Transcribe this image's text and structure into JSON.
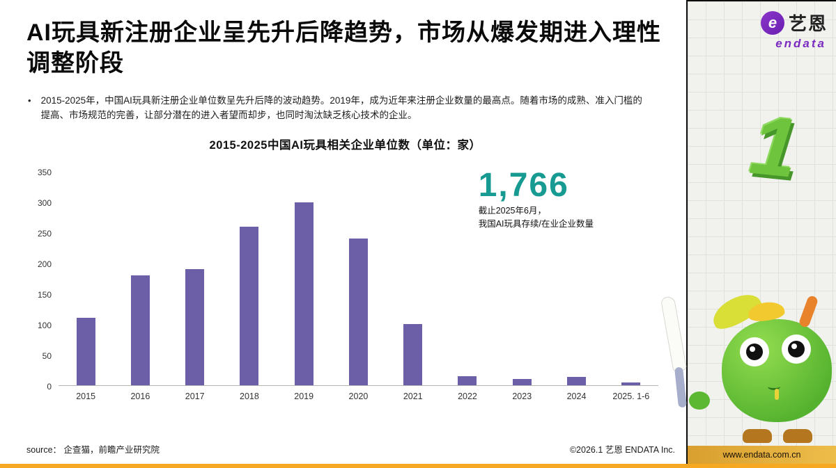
{
  "slide": {
    "title": "AI玩具新注册企业呈先升后降趋势，市场从爆发期进入理性调整阶段",
    "bullet_marker": "•",
    "bullet": "2015-2025年，中国AI玩具新注册企业单位数呈先升后降的波动趋势。2019年，成为近年来注册企业数量的最高点。随着市场的成熟、准入门槛的提高、市场规范的完善，让部分潜在的进入者望而却步，也同时淘汰缺乏核心技术的企业。",
    "source": "source： 企查猫，前瞻产业研究院",
    "copyright": "©2026.1 艺恩 ENDATA Inc."
  },
  "chart_data": {
    "type": "bar",
    "title": "2015-2025中国AI玩具相关企业单位数（单位：家）",
    "categories": [
      "2015",
      "2016",
      "2017",
      "2018",
      "2019",
      "2020",
      "2021",
      "2022",
      "2023",
      "2024",
      "2025. 1-6"
    ],
    "values": [
      110,
      180,
      190,
      260,
      300,
      240,
      100,
      15,
      10,
      13,
      5
    ],
    "xlabel": "",
    "ylabel": "",
    "ylim": [
      0,
      350
    ],
    "yticks": [
      0,
      50,
      100,
      150,
      200,
      250,
      300,
      350
    ],
    "grid": false,
    "bar_color": "#6C5FA7",
    "annotation": {
      "value": "1,766",
      "line1": "截止2025年6月，",
      "line2": "我国AI玩具存续/在业企业数量"
    }
  },
  "sidebar": {
    "logo_mark": "e",
    "logo_cn": "艺恩",
    "logo_en": "endata",
    "page_number": "1",
    "url": "www.endata.com.cn"
  },
  "colors": {
    "accent_teal": "#169A92",
    "bar_purple": "#6C5FA7",
    "accent_orange": "#F7A823",
    "logo_purple": "#7A2CC0",
    "mascot_green": "#55B22E"
  }
}
